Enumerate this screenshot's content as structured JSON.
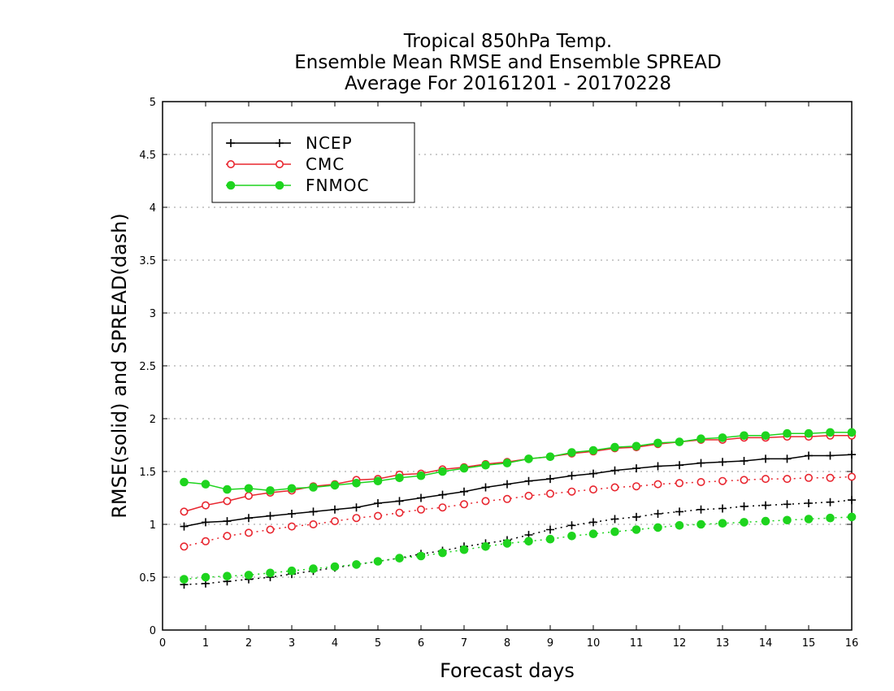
{
  "chart_data": {
    "type": "line",
    "title_lines": [
      "Tropical 850hPa Temp.",
      "Ensemble Mean RMSE and Ensemble SPREAD",
      "Average For 20161201 - 20170228"
    ],
    "xlabel": "Forecast days",
    "ylabel": "RMSE(solid) and SPREAD(dash)",
    "xlim": [
      0,
      16
    ],
    "ylim": [
      0,
      5
    ],
    "xticks": [
      "0",
      "1",
      "2",
      "3",
      "4",
      "5",
      "6",
      "7",
      "8",
      "9",
      "10",
      "11",
      "12",
      "13",
      "14",
      "15",
      "16"
    ],
    "yticks": [
      "0",
      "0.5",
      "1",
      "1.5",
      "2",
      "2.5",
      "3",
      "3.5",
      "4",
      "4.5",
      "5"
    ],
    "grid": "horizontal dotted",
    "legend_position": "top-left",
    "x": [
      0.5,
      1,
      1.5,
      2,
      2.5,
      3,
      3.5,
      4,
      4.5,
      5,
      5.5,
      6,
      6.5,
      7,
      7.5,
      8,
      8.5,
      9,
      9.5,
      10,
      10.5,
      11,
      11.5,
      12,
      12.5,
      13,
      13.5,
      14,
      14.5,
      15,
      15.5,
      16
    ],
    "series": [
      {
        "name": "NCEP",
        "color": "#000000",
        "marker": "plus",
        "rmse": [
          0.98,
          1.02,
          1.03,
          1.06,
          1.08,
          1.1,
          1.12,
          1.14,
          1.16,
          1.2,
          1.22,
          1.25,
          1.28,
          1.31,
          1.35,
          1.38,
          1.41,
          1.43,
          1.46,
          1.48,
          1.51,
          1.53,
          1.55,
          1.56,
          1.58,
          1.59,
          1.6,
          1.62,
          1.62,
          1.65,
          1.65,
          1.66
        ],
        "spread": [
          0.43,
          0.44,
          0.46,
          0.48,
          0.5,
          0.53,
          0.56,
          0.59,
          0.62,
          0.65,
          0.68,
          0.72,
          0.75,
          0.79,
          0.82,
          0.85,
          0.9,
          0.95,
          0.99,
          1.02,
          1.05,
          1.07,
          1.1,
          1.12,
          1.14,
          1.15,
          1.17,
          1.18,
          1.19,
          1.2,
          1.21,
          1.23
        ]
      },
      {
        "name": "CMC",
        "color": "#e8262f",
        "marker": "open-circle",
        "rmse": [
          1.12,
          1.18,
          1.22,
          1.27,
          1.3,
          1.32,
          1.36,
          1.38,
          1.42,
          1.43,
          1.47,
          1.48,
          1.52,
          1.54,
          1.57,
          1.59,
          1.62,
          1.64,
          1.67,
          1.69,
          1.72,
          1.73,
          1.76,
          1.78,
          1.8,
          1.8,
          1.82,
          1.82,
          1.83,
          1.83,
          1.84,
          1.84
        ],
        "spread": [
          0.79,
          0.84,
          0.89,
          0.92,
          0.95,
          0.98,
          1.0,
          1.03,
          1.06,
          1.08,
          1.11,
          1.14,
          1.16,
          1.19,
          1.22,
          1.24,
          1.27,
          1.29,
          1.31,
          1.33,
          1.35,
          1.36,
          1.38,
          1.39,
          1.4,
          1.41,
          1.42,
          1.43,
          1.43,
          1.44,
          1.44,
          1.45
        ]
      },
      {
        "name": "FNMOC",
        "color": "#1ed41e",
        "marker": "filled-circle",
        "rmse": [
          1.4,
          1.38,
          1.33,
          1.34,
          1.32,
          1.34,
          1.35,
          1.37,
          1.39,
          1.41,
          1.44,
          1.46,
          1.5,
          1.53,
          1.56,
          1.58,
          1.62,
          1.64,
          1.68,
          1.7,
          1.73,
          1.74,
          1.77,
          1.78,
          1.81,
          1.82,
          1.84,
          1.84,
          1.86,
          1.86,
          1.87,
          1.87
        ],
        "spread": [
          0.48,
          0.5,
          0.51,
          0.52,
          0.54,
          0.56,
          0.58,
          0.6,
          0.62,
          0.65,
          0.68,
          0.7,
          0.73,
          0.76,
          0.79,
          0.82,
          0.84,
          0.86,
          0.89,
          0.91,
          0.93,
          0.95,
          0.97,
          0.99,
          1.0,
          1.01,
          1.02,
          1.03,
          1.04,
          1.05,
          1.06,
          1.07
        ]
      }
    ]
  }
}
